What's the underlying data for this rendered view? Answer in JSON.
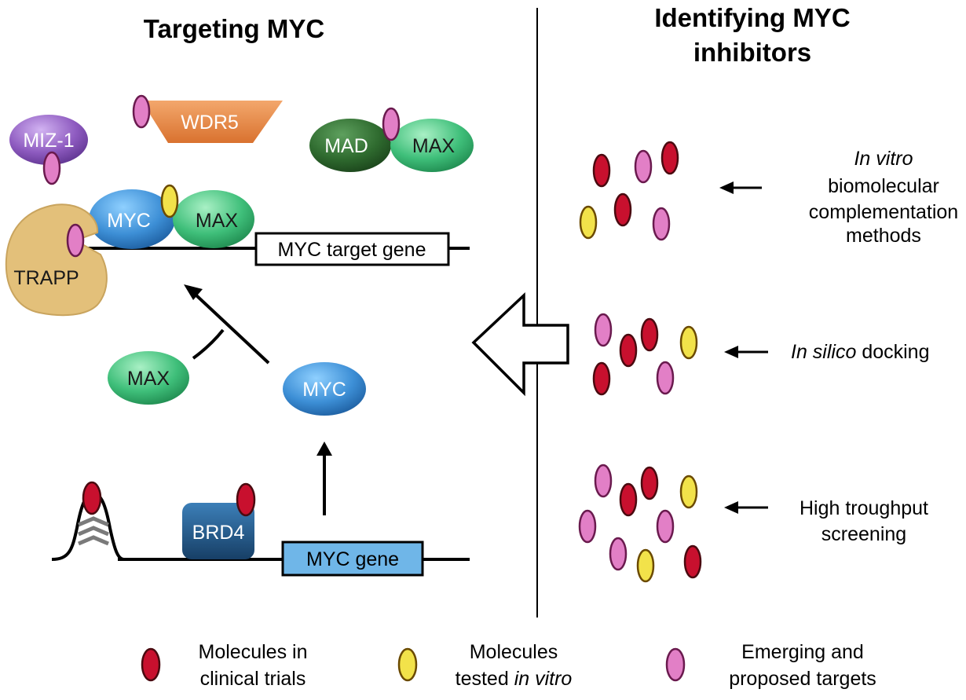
{
  "titles": {
    "left": "Targeting MYC",
    "right_line1": "Identifying MYC",
    "right_line2": "inhibitors"
  },
  "proteins": {
    "miz1": "MIZ-1",
    "wdr5": "WDR5",
    "mad": "MAD",
    "max": "MAX",
    "myc": "MYC",
    "trapp": "TRAPP",
    "brd4": "BRD4"
  },
  "genes": {
    "target": "MYC target gene",
    "myc_gene": "MYC gene"
  },
  "methods": {
    "in_vitro_italic": "In vitro",
    "in_vitro_line2": "biomolecular",
    "in_vitro_line3": "complementation",
    "in_vitro_line4": "methods",
    "in_silico_italic": "In silico",
    "in_silico_rest": " docking",
    "hts_line1": "High troughput",
    "hts_line2": "screening"
  },
  "legend": {
    "clinical_line1": "Molecules in",
    "clinical_line2": "clinical trials",
    "tested_line1": "Molecules",
    "tested_line2_prefix": "tested ",
    "tested_line2_italic": "in vitro",
    "emerging_line1": "Emerging and",
    "emerging_line2": "proposed targets"
  },
  "colors": {
    "clinical": "#c8102e",
    "tested": "#f2e24a",
    "emerging": "#e27fc6",
    "myc": "#3d8fd6",
    "max": "#3fbf7a",
    "mad": "#2f6b2f",
    "miz1": "#8e5bc0",
    "wdr5": "#e58a4a",
    "trapp": "#e3c07a",
    "brd4": "#1f5b8c",
    "myc_gene_box": "#6fb6e8"
  }
}
